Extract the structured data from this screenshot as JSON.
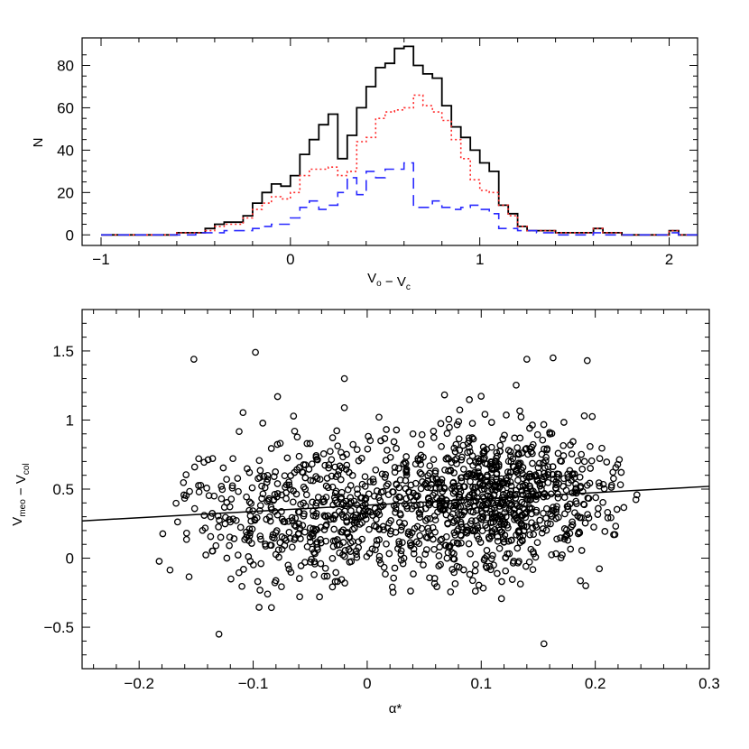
{
  "chart_data": [
    {
      "type": "histogram",
      "xlabel": "V_o − V_c",
      "ylabel": "N",
      "xlim": [
        -1.1,
        2.15
      ],
      "ylim": [
        -5,
        93
      ],
      "xticks": [
        -1,
        0,
        1,
        2
      ],
      "yticks": [
        0,
        20,
        40,
        60,
        80
      ],
      "bin_start": -1.0,
      "bin_width": 0.05,
      "series": [
        {
          "style": "solid",
          "color": "#000000",
          "values": [
            0,
            0,
            0,
            0,
            0,
            0,
            0,
            0,
            1,
            1,
            1,
            3,
            5,
            6,
            6,
            9,
            15,
            20,
            24,
            23,
            28,
            38,
            45,
            52,
            57,
            36,
            47,
            60,
            70,
            79,
            81,
            88,
            89,
            80,
            76,
            74,
            61,
            51,
            46,
            40,
            34,
            30,
            14,
            10,
            4,
            2,
            2,
            2,
            1,
            1,
            1,
            1,
            3,
            1,
            1,
            0,
            0,
            0,
            0,
            0,
            2,
            0,
            0
          ]
        },
        {
          "style": "dotted",
          "color": "#ff2a2a",
          "values": [
            0,
            0,
            0,
            0,
            0,
            0,
            0,
            0,
            1,
            1,
            1,
            2,
            4,
            5,
            5,
            8,
            12,
            15,
            18,
            17,
            20,
            28,
            31,
            31,
            32,
            28,
            30,
            44,
            46,
            55,
            58,
            59,
            60,
            66,
            61,
            58,
            54,
            45,
            36,
            26,
            21,
            20,
            14,
            9,
            4,
            2,
            2,
            2,
            1,
            1,
            1,
            1,
            3,
            1,
            1,
            0,
            0,
            0,
            0,
            0,
            2,
            0,
            0
          ]
        },
        {
          "style": "dashed",
          "color": "#2a2aff",
          "values": [
            0,
            0,
            0,
            0,
            0,
            0,
            0,
            0,
            0,
            0,
            1,
            1,
            1,
            2,
            2,
            2,
            3,
            4,
            5,
            5,
            8,
            13,
            16,
            12,
            14,
            20,
            27,
            19,
            30,
            27,
            31,
            31,
            34,
            13,
            13,
            16,
            13,
            12,
            13,
            14,
            12,
            10,
            3,
            3,
            2,
            2,
            1,
            1,
            0,
            0,
            0,
            0,
            1,
            0,
            0,
            0,
            0,
            0,
            0,
            0,
            1,
            0,
            0
          ]
        }
      ]
    },
    {
      "type": "scatter",
      "xlabel": "α*",
      "ylabel": "V_meo − V_col",
      "xlim": [
        -0.25,
        0.3
      ],
      "ylim": [
        -0.8,
        1.8
      ],
      "xticks": [
        -0.2,
        -0.1,
        0,
        0.1,
        0.2,
        0.3
      ],
      "yticks": [
        -0.5,
        0,
        0.5,
        1,
        1.5
      ],
      "n_points": 1400,
      "point_distribution": "approx. N(0.40, 0.28) in y; x from two clusters centred near -0.05 and 0.11",
      "fit_line": {
        "x": [
          -0.25,
          0.3
        ],
        "y": [
          0.27,
          0.52
        ]
      },
      "notable_points": [
        {
          "x": -0.152,
          "y": 1.44
        },
        {
          "x": -0.098,
          "y": 1.49
        },
        {
          "x": -0.02,
          "y": 1.3
        },
        {
          "x": 0.14,
          "y": 1.44
        },
        {
          "x": 0.163,
          "y": 1.45
        },
        {
          "x": 0.193,
          "y": 1.43
        },
        {
          "x": 0.155,
          "y": -0.62
        },
        {
          "x": -0.13,
          "y": -0.55
        }
      ]
    }
  ]
}
